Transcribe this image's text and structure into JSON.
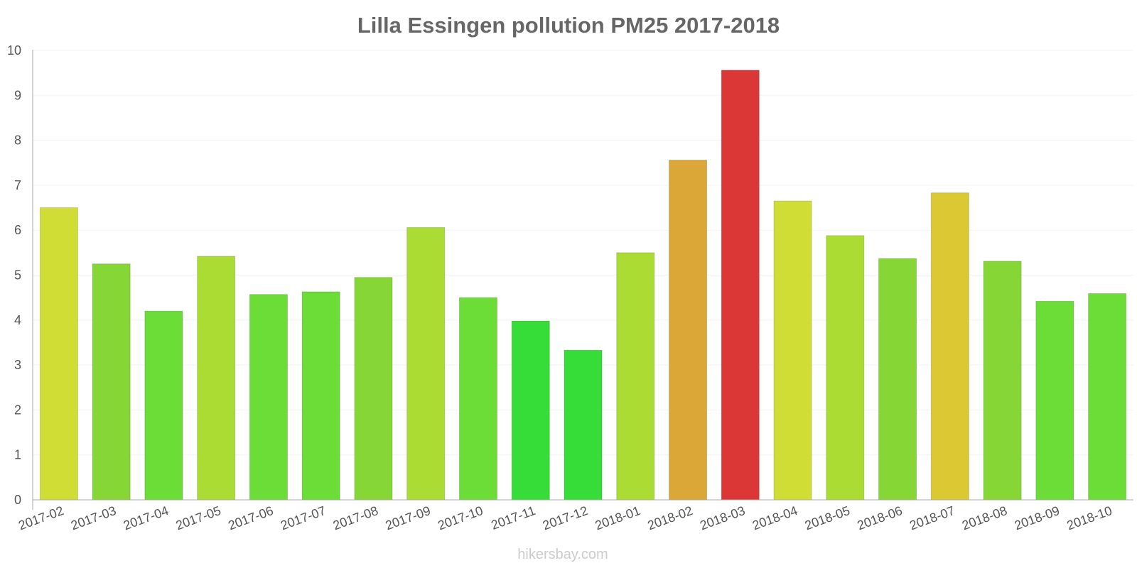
{
  "chart_data": {
    "type": "bar",
    "title": "Lilla Essingen pollution PM25 2017-2018",
    "xlabel": "",
    "ylabel": "",
    "ylim": [
      0,
      10
    ],
    "yticks": [
      0,
      1,
      2,
      3,
      4,
      5,
      6,
      7,
      8,
      9,
      10
    ],
    "grid": true,
    "categories": [
      "2017-02",
      "2017-03",
      "2017-04",
      "2017-05",
      "2017-06",
      "2017-07",
      "2017-08",
      "2017-09",
      "2017-10",
      "2017-11",
      "2017-12",
      "2018-01",
      "2018-02",
      "2018-03",
      "2018-04",
      "2018-05",
      "2018-06",
      "2018-07",
      "2018-08",
      "2018-09",
      "2018-10"
    ],
    "values": [
      6.5,
      5.25,
      4.2,
      5.42,
      4.57,
      4.63,
      4.95,
      6.06,
      4.5,
      3.98,
      3.33,
      5.5,
      7.56,
      9.56,
      6.65,
      5.88,
      5.37,
      6.83,
      5.31,
      4.42,
      4.59
    ],
    "bar_colors": [
      "#cfdd34",
      "#86d636",
      "#6cdc37",
      "#abdc34",
      "#6cdc37",
      "#6cdc37",
      "#86d636",
      "#abdc34",
      "#6cdc37",
      "#36dc37",
      "#36dc37",
      "#abdc34",
      "#dba837",
      "#db3737",
      "#cfdd34",
      "#abdc34",
      "#86d636",
      "#dbc832",
      "#86d636",
      "#6cdc37",
      "#6cdc37"
    ]
  },
  "watermark": "hikersbay.com"
}
